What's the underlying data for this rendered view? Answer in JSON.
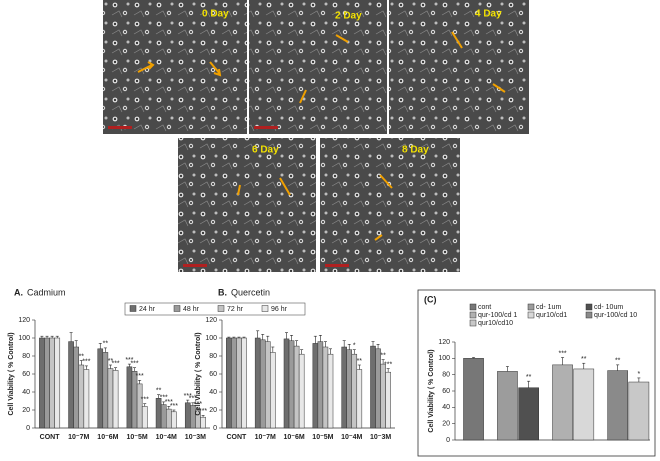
{
  "images": [
    {
      "label": "0 Day"
    },
    {
      "label": "2 Day"
    },
    {
      "label": "4 Day"
    },
    {
      "label": "6 Day"
    },
    {
      "label": "8 Day"
    }
  ],
  "chart_data": [
    {
      "type": "bar",
      "title": "Cadmium",
      "panel": "A.",
      "y_label": "Cell Viability ( % Control)",
      "categories": [
        "CONT",
        "10⁻7M",
        "10⁻6M",
        "10⁻5M",
        "10⁻4M",
        "10⁻3M"
      ],
      "ylim": [
        0,
        120
      ],
      "yticks": [
        0,
        20,
        40,
        60,
        80,
        100,
        120
      ],
      "series": [
        {
          "name": "24 hr",
          "color": "#6e6e6e",
          "values": [
            100,
            96,
            88,
            68,
            33,
            28
          ],
          "errors": [
            2,
            10,
            6,
            3,
            4,
            3
          ],
          "significance": [
            null,
            null,
            null,
            "***",
            "**",
            "***"
          ]
        },
        {
          "name": "48 hr",
          "color": "#9a9a9a",
          "values": [
            100,
            90,
            84,
            63,
            26,
            25
          ],
          "errors": [
            2,
            7,
            5,
            4,
            3,
            3
          ],
          "significance": [
            null,
            null,
            "**",
            "***",
            "***",
            "***"
          ]
        },
        {
          "name": "72 hr",
          "color": "#c4c4c4",
          "values": [
            100,
            70,
            66,
            49,
            21,
            20
          ],
          "errors": [
            2,
            5,
            4,
            4,
            3,
            2
          ],
          "significance": [
            null,
            "**",
            "**",
            "***",
            "***",
            "***"
          ]
        },
        {
          "name": "96 hr",
          "color": "#e8e8e8",
          "values": [
            100,
            65,
            64,
            24,
            18,
            12
          ],
          "errors": [
            2,
            4,
            3,
            3,
            2,
            2
          ],
          "significance": [
            null,
            "***",
            "***",
            "***",
            "***",
            "***"
          ]
        }
      ]
    },
    {
      "type": "bar",
      "title": "Quercetin",
      "panel": "B.",
      "y_label": "Cell Viability ( % Control)",
      "categories": [
        "CONT",
        "10⁻7M",
        "10⁻6M",
        "10⁻5M",
        "10⁻4M",
        "10⁻3M"
      ],
      "ylim": [
        0,
        120
      ],
      "yticks": [
        0,
        20,
        40,
        60,
        80,
        100,
        120
      ],
      "series": [
        {
          "color": "#6e6e6e",
          "values": [
            100,
            100,
            99,
            94,
            90,
            91
          ],
          "errors": [
            1,
            8,
            7,
            8,
            7,
            5
          ],
          "significance": [
            null,
            null,
            null,
            null,
            null,
            null
          ]
        },
        {
          "color": "#9a9a9a",
          "values": [
            100,
            98,
            97,
            96,
            87,
            88
          ],
          "errors": [
            1,
            6,
            6,
            7,
            6,
            5
          ],
          "significance": [
            null,
            null,
            null,
            null,
            null,
            null
          ]
        },
        {
          "color": "#c4c4c4",
          "values": [
            100,
            96,
            91,
            90,
            82,
            71
          ],
          "errors": [
            1,
            6,
            6,
            6,
            5,
            5
          ],
          "significance": [
            null,
            null,
            null,
            null,
            "*",
            "**"
          ]
        },
        {
          "color": "#e8e8e8",
          "values": [
            100,
            84,
            82,
            82,
            65,
            62
          ],
          "errors": [
            1,
            6,
            5,
            6,
            5,
            4
          ],
          "significance": [
            null,
            null,
            null,
            null,
            "**",
            "***"
          ]
        }
      ]
    },
    {
      "type": "bar",
      "title": "(C)",
      "y_label": "Cell Viability ( % Control)",
      "categories": [
        "cont",
        "cd- 1um",
        "cd- 10um",
        "qur-100/cd 1",
        "qur10/cd1",
        "qur-100/cd 10",
        "qur10/cd10"
      ],
      "values": [
        100,
        84,
        64,
        92,
        87,
        85,
        71
      ],
      "errors": [
        1,
        6,
        8,
        9,
        7,
        7,
        5
      ],
      "significance": [
        null,
        null,
        "**",
        "***",
        "**",
        "**",
        "*"
      ],
      "colors": [
        "#777777",
        "#9c9c9c",
        "#505050",
        "#b0b0b0",
        "#d8d8d8",
        "#8a8a8a",
        "#c8c8c8"
      ],
      "ylim": [
        0,
        120
      ],
      "yticks": [
        0,
        20,
        40,
        60,
        80,
        100,
        120
      ]
    }
  ]
}
